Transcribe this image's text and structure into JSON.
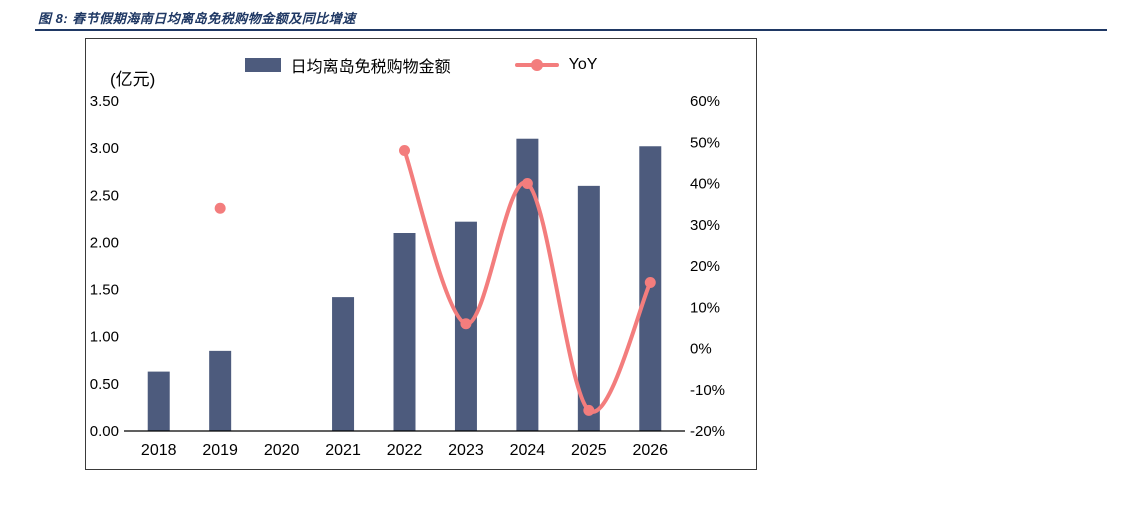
{
  "header": {
    "title": "图 8: 春节假期海南日均离岛免税购物金额及同比增速"
  },
  "chart_data": {
    "type": "bar",
    "combo": "bar+line",
    "title": "春节假期海南日均离岛免税购物金额及同比增速",
    "unit_label": "(亿元)",
    "legend_position": "top-center",
    "grid": false,
    "categories": [
      "2018",
      "2019",
      "2020",
      "2021",
      "2022",
      "2023",
      "2024",
      "2025",
      "2026"
    ],
    "legend": [
      {
        "label": "日均离岛免税购物金额",
        "marker": "bar-swatch",
        "color": "#4D5B7D"
      },
      {
        "label": "YoY",
        "marker": "line-dot",
        "color": "#F37D7D"
      }
    ],
    "series": [
      {
        "name": "日均离岛免税购物金额",
        "type": "bar",
        "axis": "left",
        "unit": "亿元",
        "values": [
          0.63,
          0.85,
          null,
          1.42,
          2.1,
          2.22,
          3.1,
          2.6,
          3.02
        ]
      },
      {
        "name": "YoY",
        "type": "line",
        "axis": "right",
        "unit": "%",
        "values": [
          null,
          34,
          null,
          null,
          48,
          6,
          40,
          -15,
          16
        ],
        "note": "2019 is an isolated marker; connected smooth line runs 2022-2026"
      }
    ],
    "y_left": {
      "min": 0,
      "max": 3.5,
      "ticks": [
        "0.00",
        "0.50",
        "1.00",
        "1.50",
        "2.00",
        "2.50",
        "3.00",
        "3.50"
      ]
    },
    "y_right": {
      "min": -20,
      "max": 60,
      "ticks": [
        "-20%",
        "-10%",
        "0%",
        "10%",
        "20%",
        "30%",
        "40%",
        "50%",
        "60%"
      ]
    },
    "colors": {
      "bar": "#4D5B7D",
      "line": "#F37D7D",
      "title": "#1F3864",
      "axis": "#000000",
      "tick_text": "#000000"
    }
  }
}
